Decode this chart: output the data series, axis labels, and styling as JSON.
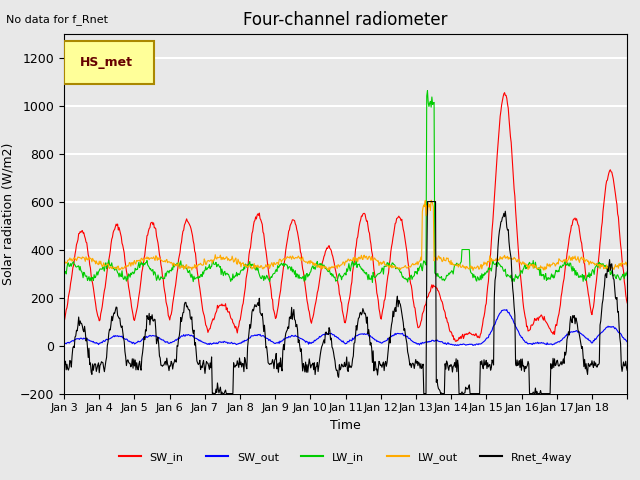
{
  "title": "Four-channel radiometer",
  "top_left_note": "No data for f_Rnet",
  "ylabel": "Solar radiation (W/m2)",
  "xlabel": "Time",
  "legend_label": "HS_met",
  "ylim": [
    -200,
    1300
  ],
  "yticks": [
    -200,
    0,
    200,
    400,
    600,
    800,
    1000,
    1200
  ],
  "xtick_positions": [
    0,
    1,
    2,
    3,
    4,
    5,
    6,
    7,
    8,
    9,
    10,
    11,
    12,
    13,
    14,
    15,
    16
  ],
  "xtick_labels": [
    "Jan 3",
    "Jan 4",
    "Jan 5",
    "Jan 6",
    "Jan 7",
    "Jan 8",
    "Jan 9",
    "Jan 10",
    "Jan 11",
    "Jan 12",
    "Jan 13",
    "Jan 14",
    "Jan 15",
    "Jan 16",
    "Jan 17",
    "Jan 18",
    ""
  ],
  "n_days": 16,
  "colors": {
    "SW_in": "#ff0000",
    "SW_out": "#0000ff",
    "LW_in": "#00cc00",
    "LW_out": "#ffaa00",
    "Rnet_4way": "#000000"
  },
  "legend_entries": [
    "SW_in",
    "SW_out",
    "LW_in",
    "LW_out",
    "Rnet_4way"
  ],
  "background_color": "#e8e8e8",
  "axes_face_color": "#e8e8e8",
  "grid_color": "#ffffff",
  "legend_box_color": "#ffff99",
  "legend_box_edge_color": "#aa8800"
}
